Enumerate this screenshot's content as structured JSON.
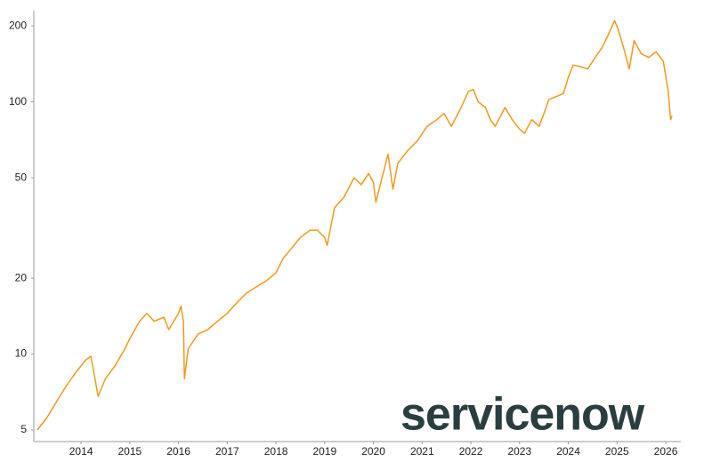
{
  "chart_data": {
    "type": "line",
    "logo": "servicenow",
    "log_scale": true,
    "color": "#ee9a1e",
    "x": [
      2013.1,
      2013.3,
      2013.5,
      2013.7,
      2013.9,
      2014.1,
      2014.2,
      2014.35,
      2014.5,
      2014.7,
      2014.9,
      2015.0,
      2015.2,
      2015.35,
      2015.5,
      2015.7,
      2015.8,
      2016.0,
      2016.05,
      2016.1,
      2016.12,
      2016.2,
      2016.4,
      2016.6,
      2016.8,
      2017.0,
      2017.2,
      2017.4,
      2017.6,
      2017.8,
      2018.0,
      2018.15,
      2018.3,
      2018.5,
      2018.7,
      2018.85,
      2019.0,
      2019.05,
      2019.2,
      2019.4,
      2019.6,
      2019.75,
      2019.9,
      2020.0,
      2020.05,
      2020.2,
      2020.3,
      2020.4,
      2020.5,
      2020.7,
      2020.9,
      2021.1,
      2021.3,
      2021.45,
      2021.6,
      2021.8,
      2021.95,
      2022.05,
      2022.15,
      2022.3,
      2022.4,
      2022.5,
      2022.7,
      2022.85,
      2023.0,
      2023.1,
      2023.25,
      2023.4,
      2023.5,
      2023.6,
      2023.75,
      2023.9,
      2024.0,
      2024.1,
      2024.25,
      2024.4,
      2024.55,
      2024.7,
      2024.85,
      2024.95,
      2025.02,
      2025.15,
      2025.25,
      2025.35,
      2025.5,
      2025.65,
      2025.8,
      2025.95,
      2026.05,
      2026.1,
      2026.13
    ],
    "values": [
      5,
      5.6,
      6.5,
      7.5,
      8.5,
      9.5,
      9.8,
      6.8,
      8,
      9,
      10.5,
      11.5,
      13.5,
      14.5,
      13.5,
      14,
      12.5,
      14.5,
      15.5,
      13.5,
      8,
      10.5,
      12,
      12.5,
      13.5,
      14.5,
      16,
      17.5,
      18.5,
      19.5,
      21,
      24,
      26,
      29,
      31,
      31,
      29,
      27,
      38,
      42,
      50,
      47,
      52,
      48,
      40,
      52,
      62,
      45,
      57,
      64,
      70,
      80,
      85,
      90,
      80,
      95,
      110,
      112,
      100,
      95,
      85,
      80,
      95,
      85,
      78,
      75,
      85,
      80,
      90,
      102,
      105,
      108,
      125,
      140,
      138,
      135,
      150,
      165,
      190,
      210,
      195,
      160,
      135,
      175,
      155,
      150,
      158,
      145,
      110,
      85,
      88
    ],
    "xlim": [
      2013.03,
      2026.31
    ],
    "ylim": [
      4.5,
      230
    ],
    "xticks": [
      2014,
      2015,
      2016,
      2017,
      2018,
      2019,
      2020,
      2021,
      2022,
      2023,
      2024,
      2025,
      2026
    ],
    "yticks": [
      5,
      10,
      20,
      50,
      100,
      200
    ]
  }
}
